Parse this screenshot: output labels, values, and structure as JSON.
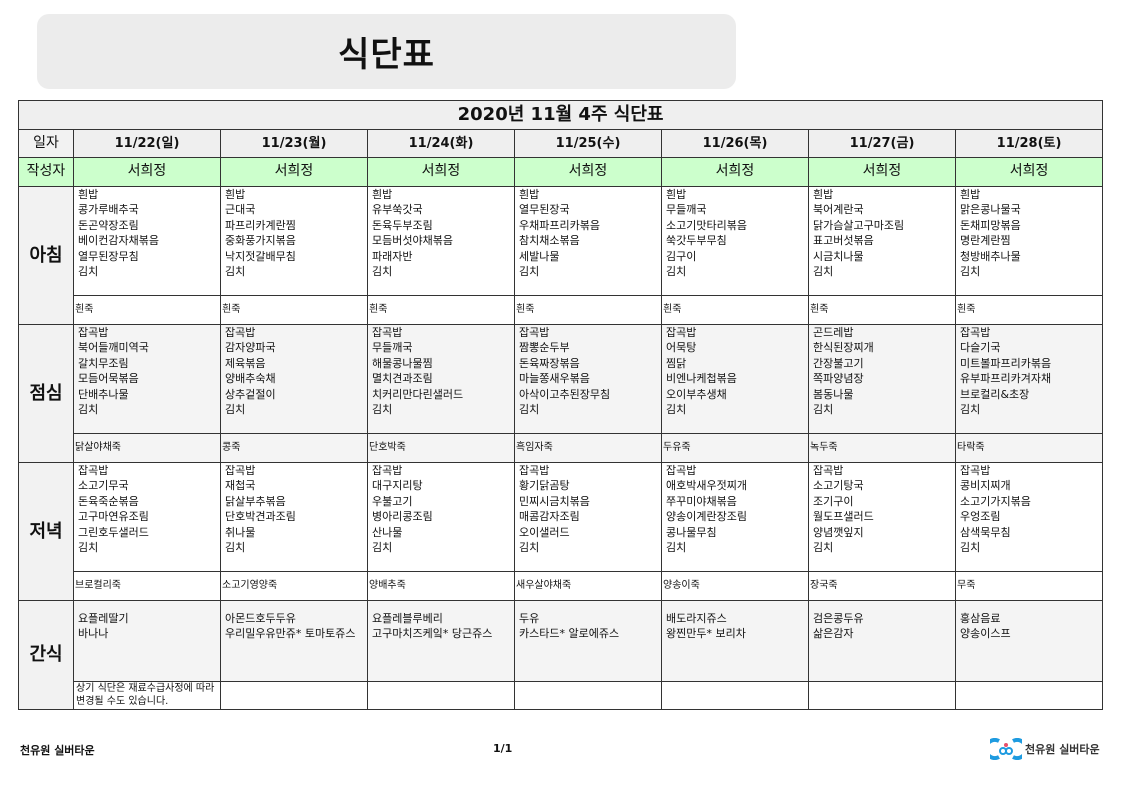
{
  "page_title": "식단표",
  "table_title": "2020년 11월 4주 식단표",
  "labels": {
    "date": "일자",
    "writer": "작성자",
    "breakfast": "아침",
    "lunch": "점심",
    "dinner": "저녁",
    "snack": "간식"
  },
  "note": "상기 식단은 재료수급사정에 따라 변경될 수도 있습니다.",
  "days": [
    {
      "date": "11/22(일)",
      "writer": "서희정",
      "breakfast": [
        "흰밥",
        "콩가루배추국",
        "돈곤약장조림",
        "베이컨감자채볶음",
        "열무된장무침",
        "김치"
      ],
      "breakfast_juk": "흰죽",
      "lunch": [
        "잡곡밥",
        "북어들깨미역국",
        "갈치무조림",
        "모듬어묵볶음",
        "단배추나물",
        "김치"
      ],
      "lunch_juk": "닭살야채죽",
      "dinner": [
        "잡곡밥",
        "소고기무국",
        "돈육죽순볶음",
        "고구마연유조림",
        "그린호두샐러드",
        "김치"
      ],
      "dinner_juk": "브로컬리죽",
      "snack": [
        "요플레딸기",
        "바나나"
      ]
    },
    {
      "date": "11/23(월)",
      "writer": "서희정",
      "breakfast": [
        "흰밥",
        "근대국",
        "파프리카계란찜",
        "중화풍가지볶음",
        "낙지젓갈배무침",
        "김치"
      ],
      "breakfast_juk": "흰죽",
      "lunch": [
        "잡곡밥",
        "감자양파국",
        "제육볶음",
        "양배추숙채",
        "상추겉절이",
        "김치"
      ],
      "lunch_juk": "콩죽",
      "dinner": [
        "잡곡밥",
        "재첩국",
        "닭살부추볶음",
        "단호박견과조림",
        "취나물",
        "김치"
      ],
      "dinner_juk": "소고기영양죽",
      "snack": [
        "아몬드호두두유",
        "우리밀우유만쥬* 토마토쥬스"
      ]
    },
    {
      "date": "11/24(화)",
      "writer": "서희정",
      "breakfast": [
        "흰밥",
        "유부쑥갓국",
        "돈육두부조림",
        "모듬버섯야채볶음",
        "파래자반",
        "김치"
      ],
      "breakfast_juk": "흰죽",
      "lunch": [
        "잡곡밥",
        "무들깨국",
        "해물콩나물찜",
        "멸치견과조림",
        "치커리만다린샐러드",
        "김치"
      ],
      "lunch_juk": "단호박죽",
      "dinner": [
        "잡곡밥",
        "대구지리탕",
        "우불고기",
        "병아리콩조림",
        "산나물",
        "김치"
      ],
      "dinner_juk": "양배추죽",
      "snack": [
        "요플레블루베리",
        "고구마치즈케잌* 당근쥬스"
      ]
    },
    {
      "date": "11/25(수)",
      "writer": "서희정",
      "breakfast": [
        "흰밥",
        "열무된장국",
        "우채파프리카볶음",
        "참치채소볶음",
        "세발나물",
        "김치"
      ],
      "breakfast_juk": "흰죽",
      "lunch": [
        "잡곡밥",
        "짬뽕순두부",
        "돈육짜장볶음",
        "마늘쫑새우볶음",
        "아삭이고추된장무침",
        "김치"
      ],
      "lunch_juk": "흑임자죽",
      "dinner": [
        "잡곡밥",
        "황기닭곰탕",
        "민찌시금치볶음",
        "매콤감자조림",
        "오이샐러드",
        "김치"
      ],
      "dinner_juk": "새우살야채죽",
      "snack": [
        "두유",
        "카스타드* 알로에쥬스"
      ]
    },
    {
      "date": "11/26(목)",
      "writer": "서희정",
      "breakfast": [
        "흰밥",
        "무들깨국",
        "소고기맛타리볶음",
        "쑥갓두부무침",
        "김구이",
        "김치"
      ],
      "breakfast_juk": "흰죽",
      "lunch": [
        "잡곡밥",
        "어묵탕",
        "찜닭",
        "비엔나케첩볶음",
        "오이부추생채",
        "김치"
      ],
      "lunch_juk": "두유죽",
      "dinner": [
        "잡곡밥",
        "애호박새우젓찌개",
        "쭈꾸미야채볶음",
        "양송이계란장조림",
        "콩나물무침",
        "김치"
      ],
      "dinner_juk": "양송이죽",
      "snack": [
        "배도라지쥬스",
        "왕찐만두* 보리차"
      ]
    },
    {
      "date": "11/27(금)",
      "writer": "서희정",
      "breakfast": [
        "흰밥",
        "북어계란국",
        "닭가슴살고구마조림",
        "표고버섯볶음",
        "시금치나물",
        "김치"
      ],
      "breakfast_juk": "흰죽",
      "lunch": [
        "곤드레밥",
        "한식된장찌개",
        "간장불고기",
        "쪽파양념장",
        "봄동나물",
        "김치"
      ],
      "lunch_juk": "녹두죽",
      "dinner": [
        "잡곡밥",
        "소고기탕국",
        "조기구이",
        "월도프샐러드",
        "양념깻잎지",
        "김치"
      ],
      "dinner_juk": "장국죽",
      "snack": [
        "검은콩두유",
        "삶은감자"
      ]
    },
    {
      "date": "11/28(토)",
      "writer": "서희정",
      "breakfast": [
        "흰밥",
        "맑은콩나물국",
        "돈채피망볶음",
        "명란계란찜",
        "청방배추나물",
        "김치"
      ],
      "breakfast_juk": "흰죽",
      "lunch": [
        "잡곡밥",
        "다슬기국",
        "미트볼파프리카볶음",
        "유부파프리카겨자채",
        "브로컬리&초장",
        "김치"
      ],
      "lunch_juk": "타락죽",
      "dinner": [
        "잡곡밥",
        "콩비지찌개",
        "소고기가지볶음",
        "우엉조림",
        "삼색묵무침",
        "김치"
      ],
      "dinner_juk": "무죽",
      "snack": [
        "홍삼음료",
        "양송이스프"
      ]
    }
  ],
  "footer": {
    "left": "천유원 실버타운",
    "page": "1/1",
    "logo_text": "천유원 실버타운"
  },
  "colors": {
    "writer_row": "#ccffcc",
    "header_gray": "#efefef",
    "logo_blue": "#1e9be0"
  }
}
